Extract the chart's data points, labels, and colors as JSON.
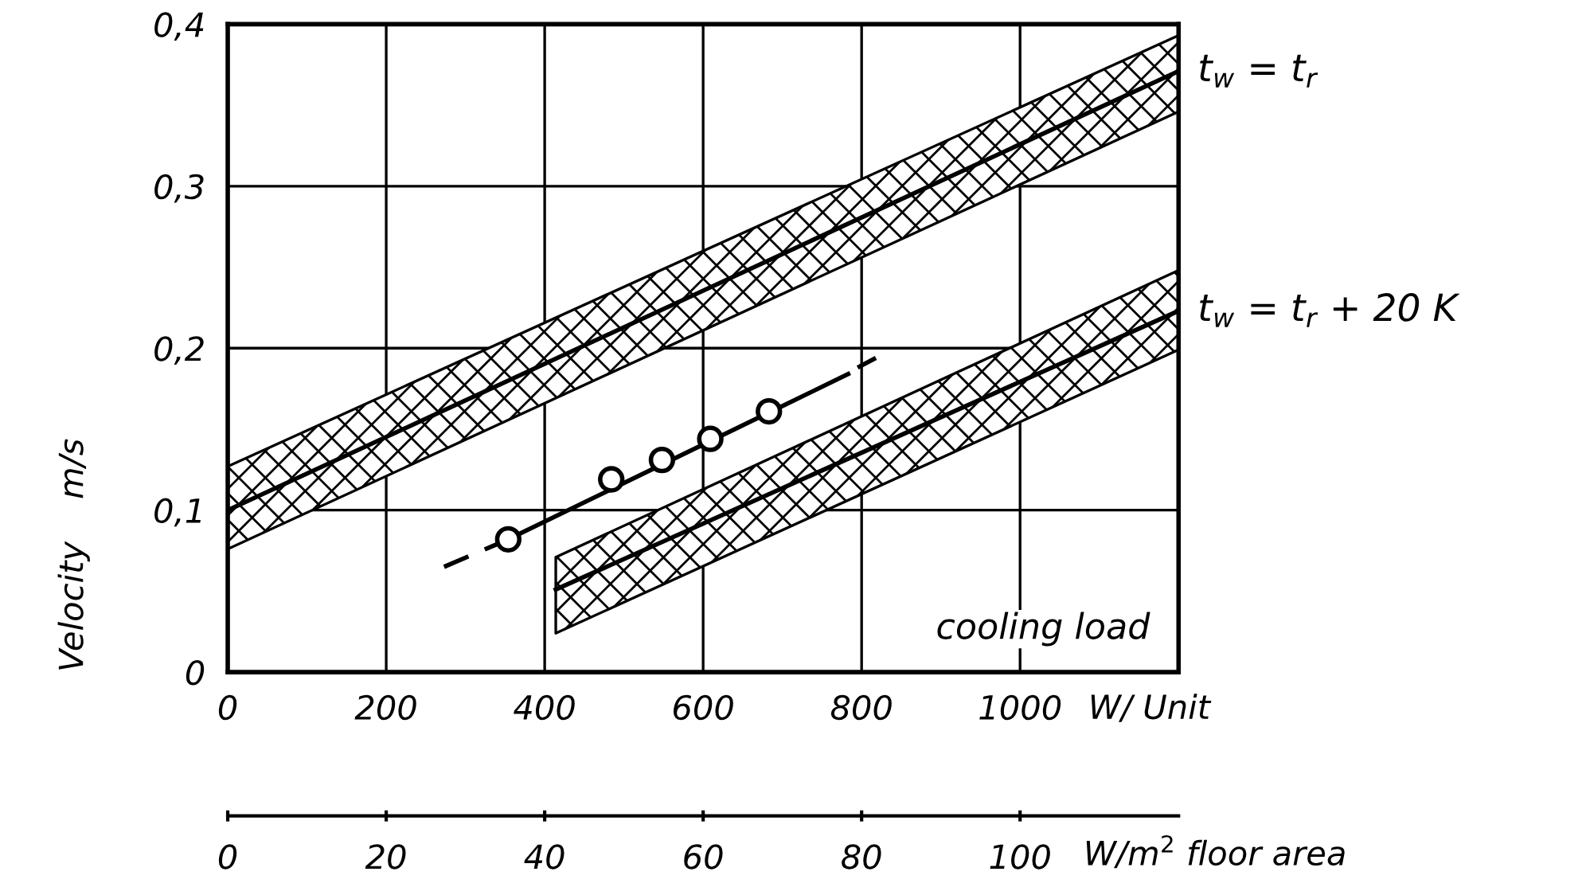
{
  "chart_data": {
    "type": "line",
    "xlabel": "W/ Unit",
    "x2label": "W/m$^{2}$ floor area",
    "ylabel": "Velocity    m/s",
    "xlim": [
      0,
      1200
    ],
    "xticks": [
      0,
      200,
      400,
      600,
      800,
      1000
    ],
    "x2lim": [
      0,
      120
    ],
    "x2ticks": [
      0,
      20,
      40,
      60,
      80,
      100
    ],
    "ylim": [
      0,
      0.4
    ],
    "yticks": [
      0,
      {
        "value": 0.1,
        "label": "0,1"
      },
      {
        "value": 0.2,
        "label": "0,2"
      },
      {
        "value": 0.3,
        "label": "0,3"
      },
      {
        "value": 0.4,
        "label": "0,4"
      }
    ],
    "grid": true,
    "legend": false,
    "series": [
      {
        "name": "t$_{w}$ = t$_{r}$",
        "color": "#000000",
        "x": [
          0,
          1200
        ],
        "values": [
          0.1,
          0.371
        ],
        "lower": [
          0.076,
          0.346
        ],
        "upper": [
          0.127,
          0.393
        ]
      },
      {
        "name": "t$_{w}$ = t$_{r}$ + 20 K",
        "color": "#000000",
        "x": [
          414,
          1200
        ],
        "values": [
          0.051,
          0.223
        ],
        "lower": [
          0.024,
          0.199
        ],
        "upper": [
          0.071,
          0.248
        ]
      },
      {
        "type": "scatter",
        "color": "#000000",
        "marker": "circle",
        "x": [
          354,
          484,
          548,
          609,
          683
        ],
        "values": [
          0.082,
          0.119,
          0.131,
          0.144,
          0.161
        ]
      },
      {
        "type": "line",
        "color": "#000000",
        "x": [
          354,
          783
        ],
        "values": [
          0.082,
          0.184
        ]
      },
      {
        "type": "line",
        "color": "#000000",
        "line_style": "dashed",
        "x": [
          273,
          340,
          570,
          795,
          818
        ],
        "values": [
          0.065,
          0.079,
          null,
          0.188,
          0.194
        ]
      }
    ],
    "annotations": [
      "cooling load"
    ]
  }
}
